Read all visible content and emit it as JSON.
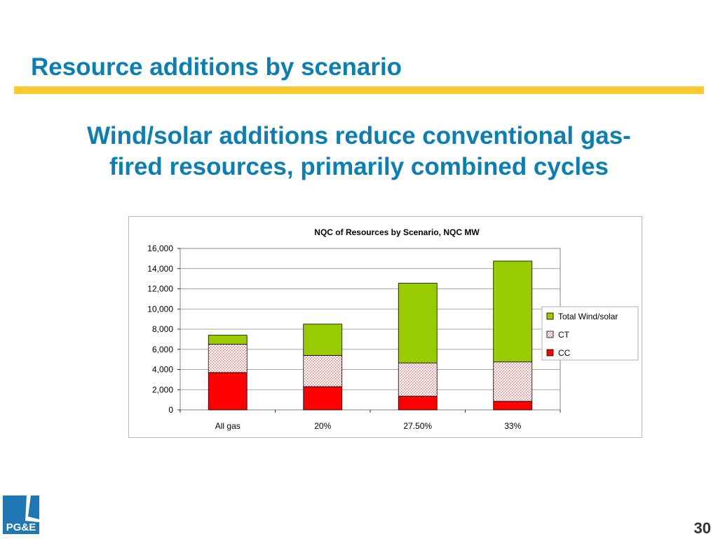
{
  "slide": {
    "title": "Resource additions by scenario",
    "subtitle_line1": "Wind/solar additions reduce conventional gas-",
    "subtitle_line2": "fired resources, primarily combined cycles",
    "page_number": "30",
    "logo_text": "PG&E"
  },
  "colors": {
    "title": "#0b7fb3",
    "rule": "#f8cb32",
    "cc": "#ff0000",
    "ct": "#f7d0d0",
    "wind_solar": "#99cc00",
    "logo": "#1f77b4"
  },
  "chart_data": {
    "type": "bar",
    "stacked": true,
    "title": "NQC of Resources by Scenario, NQC MW",
    "categories": [
      "All gas",
      "20%",
      "27.50%",
      "33%"
    ],
    "series": [
      {
        "name": "CC",
        "values": [
          3700,
          2300,
          1350,
          850
        ]
      },
      {
        "name": "CT",
        "values": [
          2800,
          3100,
          3300,
          3900
        ]
      },
      {
        "name": "Total Wind/solar",
        "values": [
          900,
          3100,
          7900,
          10000
        ]
      }
    ],
    "ylim": [
      0,
      16000
    ],
    "yticks": [
      "0",
      "2,000",
      "4,000",
      "6,000",
      "8,000",
      "10,000",
      "12,000",
      "14,000",
      "16,000"
    ],
    "grid": true,
    "legend_position": "right",
    "legend": [
      "Total Wind/solar",
      "CT",
      "CC"
    ]
  }
}
